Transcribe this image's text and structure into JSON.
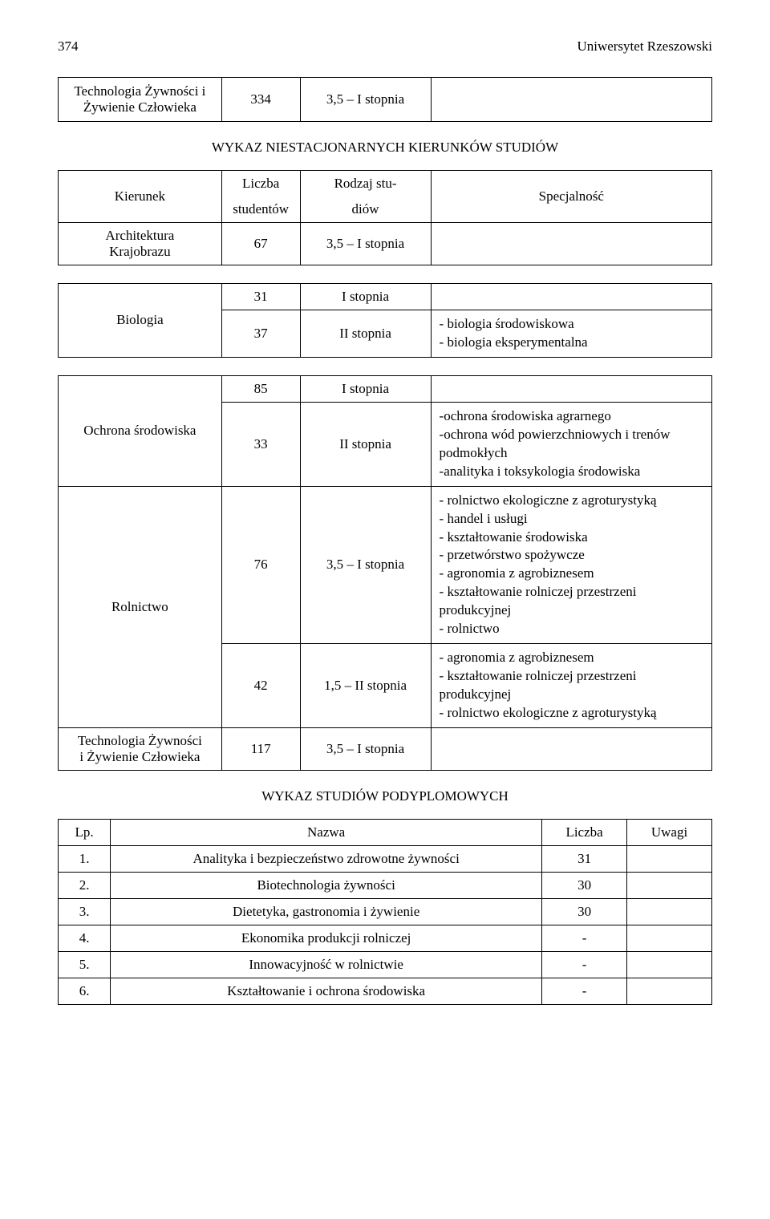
{
  "header": {
    "page_number": "374",
    "title": "Uniwersytet Rzeszowski"
  },
  "top_table": {
    "label": "Technologia Żywności i Żywienie Człowieka",
    "count": "334",
    "degree": "3,5 – I stopnia"
  },
  "section1_heading": "WYKAZ NIESTACJONARNYCH KIERUNKÓW STUDIÓW",
  "columns": {
    "c1": "Kierunek",
    "c2_line1": "Liczba",
    "c2_line2": "studentów",
    "c3_line1": "Rodzaj stu-",
    "c3_line2": "diów",
    "c4": "Specjalność"
  },
  "row_arch": {
    "label_line1": "Architektura",
    "label_line2": "Krajobrazu",
    "count": "67",
    "degree": "3,5 – I stopnia"
  },
  "row_bio": {
    "label": "Biologia",
    "r1_count": "31",
    "r1_degree": "I stopnia",
    "r2_count": "37",
    "r2_degree": "II stopnia",
    "r2_spec_l1": "- biologia środowiskowa",
    "r2_spec_l2": "- biologia eksperymentalna"
  },
  "row_ochrona": {
    "label": "Ochrona środowiska",
    "r1_count": "85",
    "r1_degree": "I stopnia",
    "r2_count": "33",
    "r2_degree": "II stopnia",
    "r2_spec_l1": "-ochrona środowiska agrarnego",
    "r2_spec_l2": "-ochrona wód powierzchniowych i trenów podmokłych",
    "r2_spec_l3": "-analityka i toksykologia środowiska"
  },
  "row_rol": {
    "label": "Rolnictwo",
    "r1_count": "76",
    "r1_degree": "3,5 – I stopnia",
    "r1_spec_l1": "- rolnictwo ekologiczne z agroturystyką",
    "r1_spec_l2": "- handel i usługi",
    "r1_spec_l3": "- kształtowanie środowiska",
    "r1_spec_l4": "- przetwórstwo spożywcze",
    "r1_spec_l5": "- agronomia z agrobiznesem",
    "r1_spec_l6": "- kształtowanie rolniczej przestrzeni produkcyjnej",
    "r1_spec_l7": "- rolnictwo",
    "r2_count": "42",
    "r2_degree": "1,5 – II stopnia",
    "r2_spec_l1": "- agronomia z agrobiznesem",
    "r2_spec_l2": "- kształtowanie rolniczej przestrzeni produkcyjnej",
    "r2_spec_l3": "- rolnictwo ekologiczne z agroturystyką"
  },
  "row_tech": {
    "label_l1": "Technologia Żywności",
    "label_l2": "i Żywienie Człowieka",
    "count": "117",
    "degree": "3,5 – I stopnia"
  },
  "section2_heading": "WYKAZ STUDIÓW PODYPLOMOWYCH",
  "pod_columns": {
    "c1": "Lp.",
    "c2": "Nazwa",
    "c3": "Liczba",
    "c4": "Uwagi"
  },
  "pod_rows": [
    {
      "no": "1.",
      "name": "Analityka i bezpieczeństwo zdrowotne żywności",
      "count": "31",
      "notes": ""
    },
    {
      "no": "2.",
      "name": "Biotechnologia żywności",
      "count": "30",
      "notes": ""
    },
    {
      "no": "3.",
      "name": "Dietetyka, gastronomia i żywienie",
      "count": "30",
      "notes": ""
    },
    {
      "no": "4.",
      "name": "Ekonomika produkcji rolniczej",
      "count": "-",
      "notes": ""
    },
    {
      "no": "5.",
      "name": "Innowacyjność w rolnictwie",
      "count": "-",
      "notes": ""
    },
    {
      "no": "6.",
      "name": "Kształtowanie i ochrona środowiska",
      "count": "-",
      "notes": ""
    }
  ]
}
